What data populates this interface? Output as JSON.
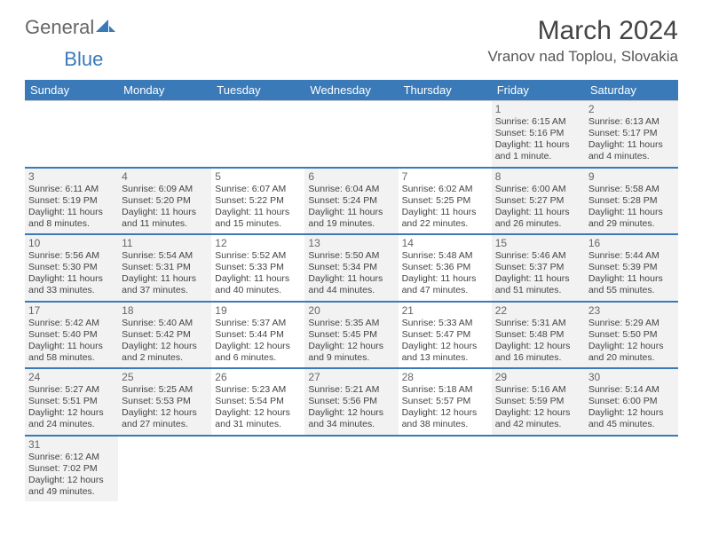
{
  "logo": {
    "text1": "General",
    "text2": "Blue"
  },
  "title": "March 2024",
  "location": "Vranov nad Toplou, Slovakia",
  "colors": {
    "header_bg": "#3a7ab8",
    "header_fg": "#ffffff",
    "row_divider": "#3a7ab8",
    "cell_border": "#d0d0d0",
    "shade_bg": "#f2f2f2",
    "text": "#444444",
    "daynum": "#666666"
  },
  "typography": {
    "title_fontsize": 30,
    "location_fontsize": 17,
    "header_fontsize": 13,
    "daynum_fontsize": 12,
    "body_fontsize": 10.5
  },
  "weekdays": [
    "Sunday",
    "Monday",
    "Tuesday",
    "Wednesday",
    "Thursday",
    "Friday",
    "Saturday"
  ],
  "weeks": [
    [
      {
        "blank": true
      },
      {
        "blank": true
      },
      {
        "blank": true
      },
      {
        "blank": true
      },
      {
        "blank": true
      },
      {
        "day": "1",
        "sunrise": "Sunrise: 6:15 AM",
        "sunset": "Sunset: 5:16 PM",
        "daylight": "Daylight: 11 hours and 1 minute.",
        "shade": true
      },
      {
        "day": "2",
        "sunrise": "Sunrise: 6:13 AM",
        "sunset": "Sunset: 5:17 PM",
        "daylight": "Daylight: 11 hours and 4 minutes.",
        "shade": true
      }
    ],
    [
      {
        "day": "3",
        "sunrise": "Sunrise: 6:11 AM",
        "sunset": "Sunset: 5:19 PM",
        "daylight": "Daylight: 11 hours and 8 minutes.",
        "shade": true
      },
      {
        "day": "4",
        "sunrise": "Sunrise: 6:09 AM",
        "sunset": "Sunset: 5:20 PM",
        "daylight": "Daylight: 11 hours and 11 minutes.",
        "shade": true
      },
      {
        "day": "5",
        "sunrise": "Sunrise: 6:07 AM",
        "sunset": "Sunset: 5:22 PM",
        "daylight": "Daylight: 11 hours and 15 minutes.",
        "shade": false
      },
      {
        "day": "6",
        "sunrise": "Sunrise: 6:04 AM",
        "sunset": "Sunset: 5:24 PM",
        "daylight": "Daylight: 11 hours and 19 minutes.",
        "shade": true
      },
      {
        "day": "7",
        "sunrise": "Sunrise: 6:02 AM",
        "sunset": "Sunset: 5:25 PM",
        "daylight": "Daylight: 11 hours and 22 minutes.",
        "shade": false
      },
      {
        "day": "8",
        "sunrise": "Sunrise: 6:00 AM",
        "sunset": "Sunset: 5:27 PM",
        "daylight": "Daylight: 11 hours and 26 minutes.",
        "shade": true
      },
      {
        "day": "9",
        "sunrise": "Sunrise: 5:58 AM",
        "sunset": "Sunset: 5:28 PM",
        "daylight": "Daylight: 11 hours and 29 minutes.",
        "shade": true
      }
    ],
    [
      {
        "day": "10",
        "sunrise": "Sunrise: 5:56 AM",
        "sunset": "Sunset: 5:30 PM",
        "daylight": "Daylight: 11 hours and 33 minutes.",
        "shade": true
      },
      {
        "day": "11",
        "sunrise": "Sunrise: 5:54 AM",
        "sunset": "Sunset: 5:31 PM",
        "daylight": "Daylight: 11 hours and 37 minutes.",
        "shade": true
      },
      {
        "day": "12",
        "sunrise": "Sunrise: 5:52 AM",
        "sunset": "Sunset: 5:33 PM",
        "daylight": "Daylight: 11 hours and 40 minutes.",
        "shade": false
      },
      {
        "day": "13",
        "sunrise": "Sunrise: 5:50 AM",
        "sunset": "Sunset: 5:34 PM",
        "daylight": "Daylight: 11 hours and 44 minutes.",
        "shade": true
      },
      {
        "day": "14",
        "sunrise": "Sunrise: 5:48 AM",
        "sunset": "Sunset: 5:36 PM",
        "daylight": "Daylight: 11 hours and 47 minutes.",
        "shade": false
      },
      {
        "day": "15",
        "sunrise": "Sunrise: 5:46 AM",
        "sunset": "Sunset: 5:37 PM",
        "daylight": "Daylight: 11 hours and 51 minutes.",
        "shade": true
      },
      {
        "day": "16",
        "sunrise": "Sunrise: 5:44 AM",
        "sunset": "Sunset: 5:39 PM",
        "daylight": "Daylight: 11 hours and 55 minutes.",
        "shade": true
      }
    ],
    [
      {
        "day": "17",
        "sunrise": "Sunrise: 5:42 AM",
        "sunset": "Sunset: 5:40 PM",
        "daylight": "Daylight: 11 hours and 58 minutes.",
        "shade": true
      },
      {
        "day": "18",
        "sunrise": "Sunrise: 5:40 AM",
        "sunset": "Sunset: 5:42 PM",
        "daylight": "Daylight: 12 hours and 2 minutes.",
        "shade": true
      },
      {
        "day": "19",
        "sunrise": "Sunrise: 5:37 AM",
        "sunset": "Sunset: 5:44 PM",
        "daylight": "Daylight: 12 hours and 6 minutes.",
        "shade": false
      },
      {
        "day": "20",
        "sunrise": "Sunrise: 5:35 AM",
        "sunset": "Sunset: 5:45 PM",
        "daylight": "Daylight: 12 hours and 9 minutes.",
        "shade": true
      },
      {
        "day": "21",
        "sunrise": "Sunrise: 5:33 AM",
        "sunset": "Sunset: 5:47 PM",
        "daylight": "Daylight: 12 hours and 13 minutes.",
        "shade": false
      },
      {
        "day": "22",
        "sunrise": "Sunrise: 5:31 AM",
        "sunset": "Sunset: 5:48 PM",
        "daylight": "Daylight: 12 hours and 16 minutes.",
        "shade": true
      },
      {
        "day": "23",
        "sunrise": "Sunrise: 5:29 AM",
        "sunset": "Sunset: 5:50 PM",
        "daylight": "Daylight: 12 hours and 20 minutes.",
        "shade": true
      }
    ],
    [
      {
        "day": "24",
        "sunrise": "Sunrise: 5:27 AM",
        "sunset": "Sunset: 5:51 PM",
        "daylight": "Daylight: 12 hours and 24 minutes.",
        "shade": true
      },
      {
        "day": "25",
        "sunrise": "Sunrise: 5:25 AM",
        "sunset": "Sunset: 5:53 PM",
        "daylight": "Daylight: 12 hours and 27 minutes.",
        "shade": true
      },
      {
        "day": "26",
        "sunrise": "Sunrise: 5:23 AM",
        "sunset": "Sunset: 5:54 PM",
        "daylight": "Daylight: 12 hours and 31 minutes.",
        "shade": false
      },
      {
        "day": "27",
        "sunrise": "Sunrise: 5:21 AM",
        "sunset": "Sunset: 5:56 PM",
        "daylight": "Daylight: 12 hours and 34 minutes.",
        "shade": true
      },
      {
        "day": "28",
        "sunrise": "Sunrise: 5:18 AM",
        "sunset": "Sunset: 5:57 PM",
        "daylight": "Daylight: 12 hours and 38 minutes.",
        "shade": false
      },
      {
        "day": "29",
        "sunrise": "Sunrise: 5:16 AM",
        "sunset": "Sunset: 5:59 PM",
        "daylight": "Daylight: 12 hours and 42 minutes.",
        "shade": true
      },
      {
        "day": "30",
        "sunrise": "Sunrise: 5:14 AM",
        "sunset": "Sunset: 6:00 PM",
        "daylight": "Daylight: 12 hours and 45 minutes.",
        "shade": true
      }
    ],
    [
      {
        "day": "31",
        "sunrise": "Sunrise: 6:12 AM",
        "sunset": "Sunset: 7:02 PM",
        "daylight": "Daylight: 12 hours and 49 minutes.",
        "shade": true
      },
      {
        "blank": true
      },
      {
        "blank": true
      },
      {
        "blank": true
      },
      {
        "blank": true
      },
      {
        "blank": true
      },
      {
        "blank": true
      }
    ]
  ]
}
